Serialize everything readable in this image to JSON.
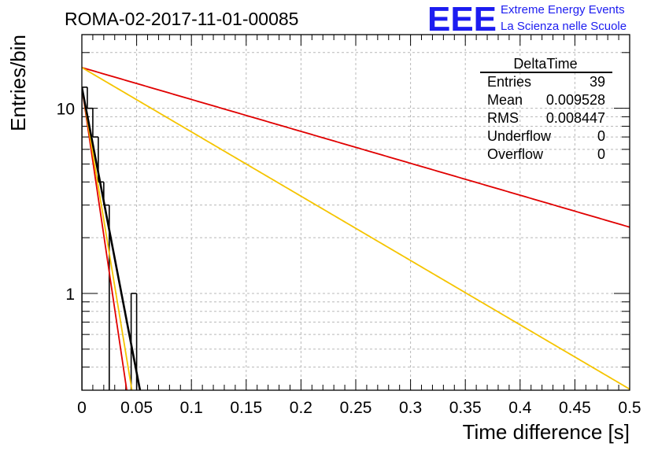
{
  "chart_data": {
    "type": "histogram",
    "title": "ROMA-02-2017-11-01-00085",
    "xlabel": "Time difference [s]",
    "ylabel": "Entries/bin",
    "xlim": [
      0,
      0.5
    ],
    "ylim": [
      0.3,
      25
    ],
    "yscale": "log",
    "grid": true,
    "x_tick_labels": [
      "0",
      "0.05",
      "0.1",
      "0.15",
      "0.2",
      "0.25",
      "0.3",
      "0.35",
      "0.4",
      "0.45",
      "0.5"
    ],
    "y_tick_labels": [
      {
        "value": 1,
        "label": "1"
      },
      {
        "value": 10,
        "label": "10"
      }
    ],
    "histogram": {
      "bin_width": 0.005,
      "bin_starts": [
        0.0,
        0.005,
        0.01,
        0.015,
        0.02,
        0.025,
        0.03,
        0.035,
        0.04,
        0.045,
        0.05
      ],
      "counts": [
        13,
        10,
        7,
        4,
        3,
        0,
        0,
        0,
        0,
        1,
        0
      ],
      "color": "#000000"
    },
    "series": [
      {
        "color": "#000000",
        "type": "exponential",
        "amplitude": 13.0,
        "decay_per_s": 71.0
      },
      {
        "color": "#f5c400",
        "type": "exponential",
        "amplitude": 13.0,
        "decay_per_s": 82.5
      },
      {
        "color": "#e00000",
        "type": "exponential",
        "amplitude": 13.0,
        "decay_per_s": 92.0
      },
      {
        "color": "#f5c400",
        "type": "exponential",
        "amplitude": 16.6,
        "decay_per_s": 8.0
      },
      {
        "color": "#e00000",
        "type": "exponential",
        "amplitude": 16.6,
        "decay_per_s": 3.97
      }
    ],
    "stats_box": {
      "title": "DeltaTime",
      "placement": "top-right",
      "rows": [
        {
          "label": "Entries",
          "value": "39"
        },
        {
          "label": "Mean",
          "value": "0.009528"
        },
        {
          "label": "RMS",
          "value": "0.008447"
        },
        {
          "label": "Underflow",
          "value": "0"
        },
        {
          "label": "Overflow",
          "value": "0"
        }
      ]
    }
  },
  "logo": {
    "mark": "EEE",
    "line1": "Extreme Energy Events",
    "line2": "La Scienza nelle Scuole"
  }
}
